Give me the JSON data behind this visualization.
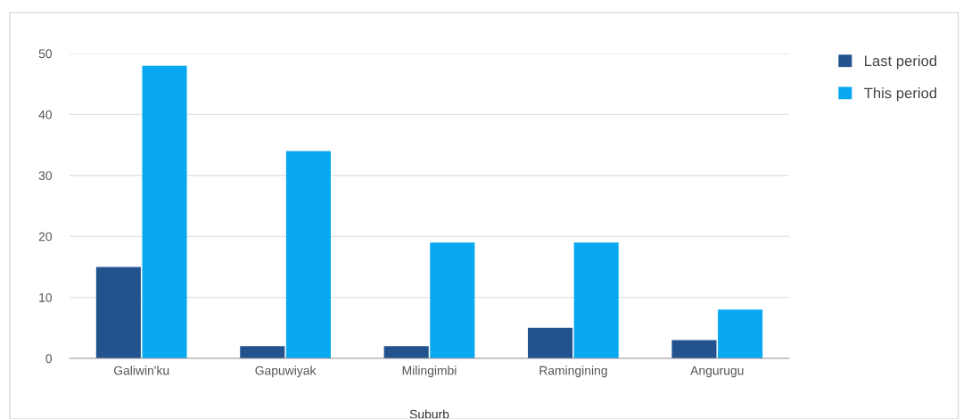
{
  "chart_data": {
    "type": "bar",
    "xlabel": "Suburb",
    "categories": [
      "Galiwin'ku",
      "Gapuwiyak",
      "Milingimbi",
      "Ramingining",
      "Angurugu"
    ],
    "series": [
      {
        "name": "Last period",
        "color": "#22538f",
        "values": [
          15,
          2,
          2,
          5,
          3
        ]
      },
      {
        "name": "This period",
        "color": "#08a9f0",
        "values": [
          48,
          34,
          19,
          19,
          8
        ]
      }
    ],
    "ylim": [
      0,
      50
    ],
    "yticks": [
      0,
      10,
      20,
      30,
      40,
      50
    ],
    "grid": "y",
    "legend": "top right"
  }
}
